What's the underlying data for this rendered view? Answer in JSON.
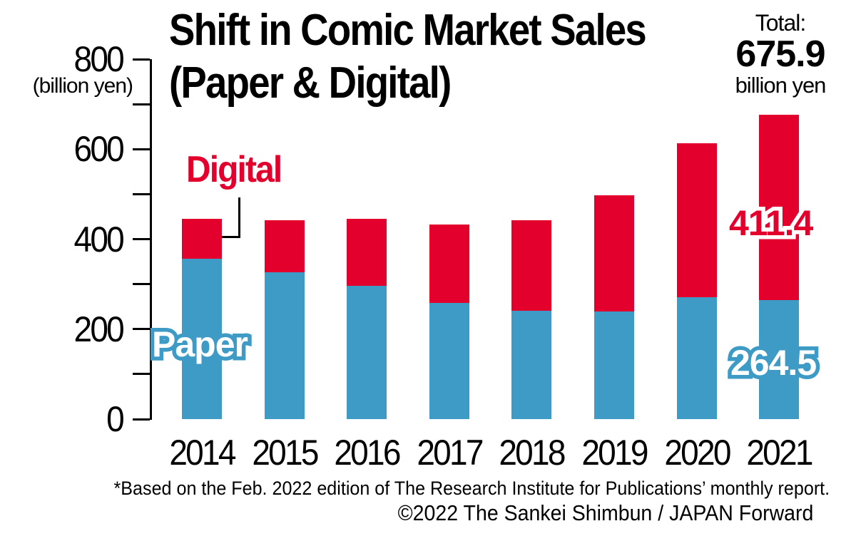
{
  "title": {
    "line1": "Shift in Comic Market Sales",
    "line2": "(Paper & Digital)"
  },
  "total_annotation": {
    "prefix": "Total:",
    "value": "675.9",
    "suffix": "billion yen"
  },
  "series_labels": {
    "digital": "Digital",
    "paper": "Paper"
  },
  "value_annotations": {
    "digital_2021": "411.4",
    "paper_2021": "264.5"
  },
  "y_axis": {
    "unit_label": "(billion yen)",
    "tick_labels": [
      "800",
      "600",
      "400",
      "200",
      "0"
    ]
  },
  "footnote": "*Based on the Feb. 2022 edition of The Research Institute for Publications’ monthly report.",
  "copyright": "©2022 The Sankei Shimbun / JAPAN Forward",
  "colors": {
    "digital_red": "#e3002d",
    "paper_blue": "#3e9bc5",
    "axis_black": "#000000",
    "background": "#ffffff"
  },
  "chart_data": {
    "type": "bar",
    "stacked": true,
    "title": "Shift in Comic Market Sales (Paper & Digital)",
    "ylabel": "(billion yen)",
    "ylim": [
      0,
      800
    ],
    "y_major_ticks": [
      0,
      200,
      400,
      600,
      800
    ],
    "y_minor_tick_step": 100,
    "grid": false,
    "legend_position": "inline-annotations",
    "categories": [
      "2014",
      "2015",
      "2016",
      "2017",
      "2018",
      "2019",
      "2020",
      "2021"
    ],
    "series": [
      {
        "name": "Paper",
        "color": "#3e9bc5",
        "values": [
          356.9,
          326.8,
          296.3,
          258.3,
          241.2,
          238.7,
          270.6,
          264.5
        ]
      },
      {
        "name": "Digital",
        "color": "#e3002d",
        "values": [
          88.7,
          114.9,
          149.1,
          174.7,
          200.2,
          259.3,
          342.0,
          411.4
        ]
      }
    ],
    "labeled_values_2021": {
      "paper": 264.5,
      "digital": 411.4,
      "total": 675.9
    }
  }
}
